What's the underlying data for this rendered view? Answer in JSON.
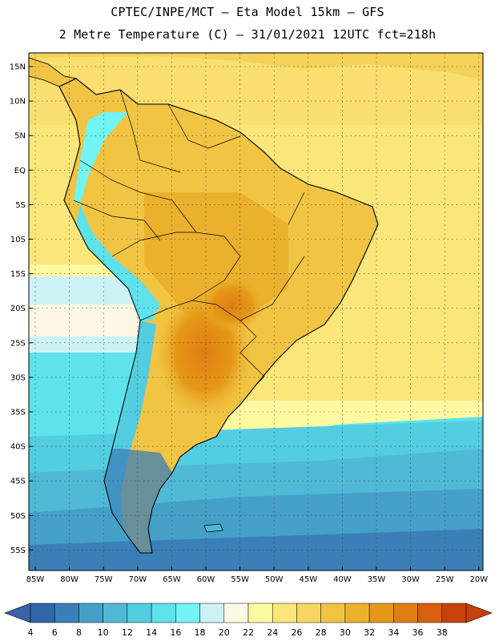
{
  "header": {
    "line1": "CPTEC/INPE/MCT –  Eta Model 15km – GFS",
    "line2": "2 Metre Temperature (C) – 31/01/2021 12UTC fct=218h"
  },
  "map": {
    "lat_labels": [
      "15N",
      "10N",
      "5N",
      "EQ",
      "5S",
      "10S",
      "15S",
      "20S",
      "25S",
      "30S",
      "35S",
      "40S",
      "45S",
      "50S",
      "55S"
    ],
    "lon_labels": [
      "85W",
      "80W",
      "75W",
      "70W",
      "65W",
      "60W",
      "55W",
      "50W",
      "45W",
      "40W",
      "35W",
      "30W",
      "25W",
      "20W"
    ]
  },
  "colorbar": {
    "labels": [
      "4",
      "6",
      "8",
      "10",
      "12",
      "14",
      "16",
      "18",
      "20",
      "22",
      "24",
      "26",
      "28",
      "30",
      "32",
      "34",
      "36",
      "38"
    ],
    "colors": [
      "#2f66a6",
      "#3a7fb8",
      "#45a0c8",
      "#4fb9d6",
      "#53cde0",
      "#5ee2ec",
      "#72f4f4",
      "#cdf2f6",
      "#fdf8e4",
      "#fefaa2",
      "#fbe67a",
      "#f6d662",
      "#f1c444",
      "#ebb12c",
      "#e59818",
      "#e07e12",
      "#d8600c",
      "#c9420a"
    ],
    "low_arrow": "#3b62a8",
    "high_arrow": "#c6400a"
  }
}
